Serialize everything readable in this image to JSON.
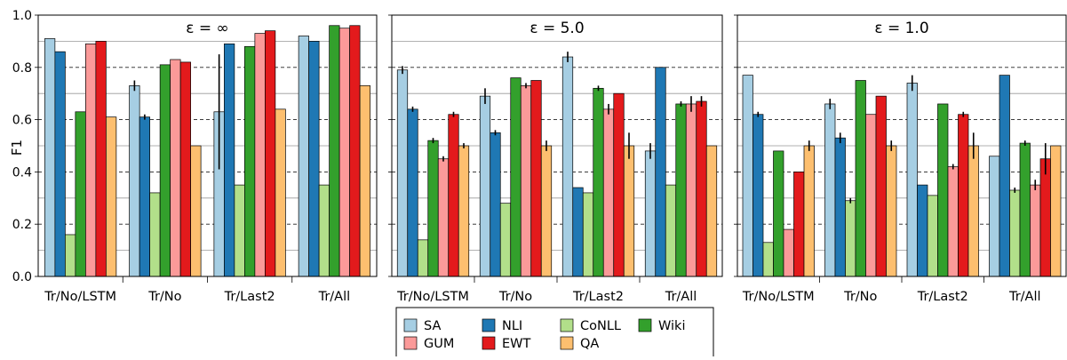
{
  "ylabel": "F1",
  "yticks": [
    "0.0",
    "0.2",
    "0.4",
    "0.6",
    "0.8",
    "1.0"
  ],
  "ytick_values": [
    0.0,
    0.2,
    0.4,
    0.6,
    0.8,
    1.0
  ],
  "series_colors": {
    "SA": "#a6cee3",
    "NLI": "#1f78b4",
    "CoNLL": "#b2df8a",
    "Wiki": "#33a02c",
    "GUM": "#fb9a99",
    "EWT": "#e31a1c",
    "QA": "#fdbf6f"
  },
  "legend": {
    "rows": [
      [
        "SA",
        "NLI",
        "CoNLL",
        "Wiki"
      ],
      [
        "GUM",
        "EWT",
        "QA"
      ]
    ]
  },
  "chart_data": [
    {
      "type": "bar",
      "title": "ε = ∞",
      "categories": [
        "Tr/No/LSTM",
        "Tr/No",
        "Tr/Last2",
        "Tr/All"
      ],
      "ylim": [
        0,
        1.0
      ],
      "grid": true,
      "series": [
        {
          "name": "SA",
          "values": [
            0.91,
            0.73,
            0.63,
            0.92
          ],
          "err": [
            0,
            0.02,
            0.22,
            0
          ]
        },
        {
          "name": "NLI",
          "values": [
            0.86,
            0.61,
            0.89,
            0.9
          ],
          "err": [
            0,
            0.01,
            0,
            0
          ]
        },
        {
          "name": "CoNLL",
          "values": [
            0.16,
            0.32,
            0.35,
            0.35
          ],
          "err": [
            0,
            0,
            0,
            0
          ]
        },
        {
          "name": "Wiki",
          "values": [
            0.63,
            0.81,
            0.88,
            0.96
          ],
          "err": [
            0,
            0,
            0,
            0
          ]
        },
        {
          "name": "GUM",
          "values": [
            0.89,
            0.83,
            0.93,
            0.95
          ],
          "err": [
            0,
            0,
            0,
            0
          ]
        },
        {
          "name": "EWT",
          "values": [
            0.9,
            0.82,
            0.94,
            0.96
          ],
          "err": [
            0,
            0,
            0,
            0
          ]
        },
        {
          "name": "QA",
          "values": [
            0.61,
            0.5,
            0.64,
            0.73
          ],
          "err": [
            0,
            0,
            0,
            0
          ]
        }
      ]
    },
    {
      "type": "bar",
      "title": "ε = 5.0",
      "categories": [
        "Tr/No/LSTM",
        "Tr/No",
        "Tr/Last2",
        "Tr/All"
      ],
      "ylim": [
        0,
        1.0
      ],
      "grid": true,
      "series": [
        {
          "name": "SA",
          "values": [
            0.79,
            0.69,
            0.84,
            0.48
          ],
          "err": [
            0.015,
            0.03,
            0.02,
            0.03
          ]
        },
        {
          "name": "NLI",
          "values": [
            0.64,
            0.55,
            0.34,
            0.8
          ],
          "err": [
            0.01,
            0.01,
            0,
            0
          ]
        },
        {
          "name": "CoNLL",
          "values": [
            0.14,
            0.28,
            0.32,
            0.35
          ],
          "err": [
            0,
            0,
            0,
            0
          ]
        },
        {
          "name": "Wiki",
          "values": [
            0.52,
            0.76,
            0.72,
            0.66
          ],
          "err": [
            0.01,
            0,
            0.01,
            0.01
          ]
        },
        {
          "name": "GUM",
          "values": [
            0.45,
            0.73,
            0.64,
            0.66
          ],
          "err": [
            0.01,
            0.01,
            0.02,
            0.03
          ]
        },
        {
          "name": "EWT",
          "values": [
            0.62,
            0.75,
            0.7,
            0.67
          ],
          "err": [
            0.01,
            0,
            0,
            0.02
          ]
        },
        {
          "name": "QA",
          "values": [
            0.5,
            0.5,
            0.5,
            0.5
          ],
          "err": [
            0.01,
            0.02,
            0.05,
            0
          ]
        }
      ]
    },
    {
      "type": "bar",
      "title": "ε = 1.0",
      "categories": [
        "Tr/No/LSTM",
        "Tr/No",
        "Tr/Last2",
        "Tr/All"
      ],
      "ylim": [
        0,
        1.0
      ],
      "grid": true,
      "series": [
        {
          "name": "SA",
          "values": [
            0.77,
            0.66,
            0.74,
            0.46
          ],
          "err": [
            0,
            0.02,
            0.03,
            0
          ]
        },
        {
          "name": "NLI",
          "values": [
            0.62,
            0.53,
            0.35,
            0.77
          ],
          "err": [
            0.01,
            0.02,
            0,
            0
          ]
        },
        {
          "name": "CoNLL",
          "values": [
            0.13,
            0.29,
            0.31,
            0.33
          ],
          "err": [
            0,
            0.01,
            0,
            0.01
          ]
        },
        {
          "name": "Wiki",
          "values": [
            0.48,
            0.75,
            0.66,
            0.51
          ],
          "err": [
            0,
            0,
            0,
            0.01
          ]
        },
        {
          "name": "GUM",
          "values": [
            0.18,
            0.62,
            0.42,
            0.35
          ],
          "err": [
            0,
            0,
            0.01,
            0.02
          ]
        },
        {
          "name": "EWT",
          "values": [
            0.4,
            0.69,
            0.62,
            0.45
          ],
          "err": [
            0,
            0,
            0.01,
            0.06
          ]
        },
        {
          "name": "QA",
          "values": [
            0.5,
            0.5,
            0.5,
            0.5
          ],
          "err": [
            0.02,
            0.02,
            0.05,
            0
          ]
        }
      ]
    }
  ]
}
